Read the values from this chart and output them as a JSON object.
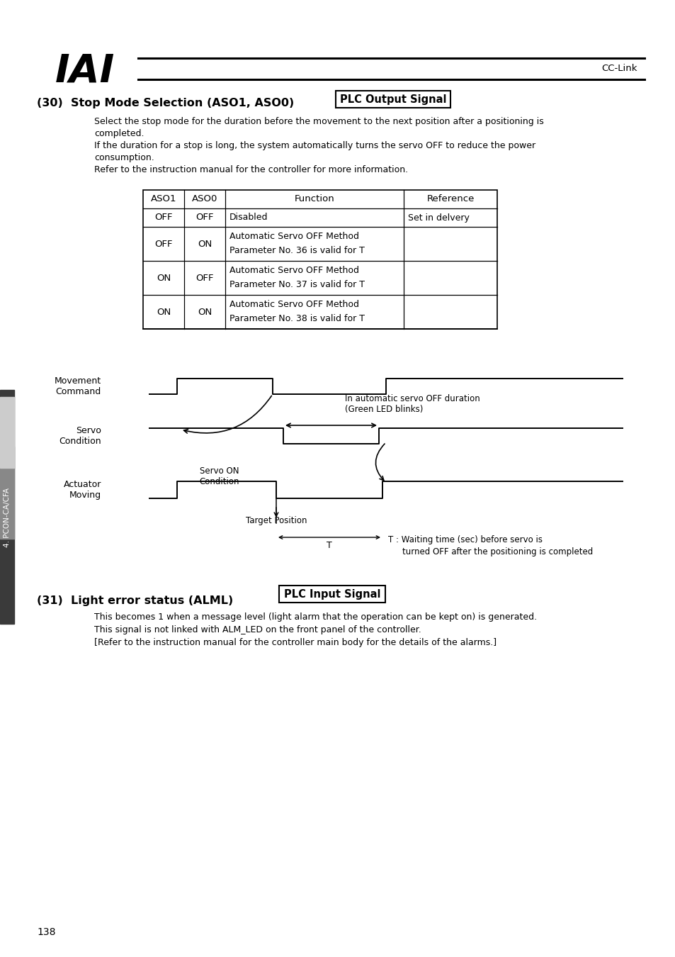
{
  "bg_color": "#ffffff",
  "text_color": "#000000",
  "header_text": "CC-Link",
  "sidebar_text": "4. PCON-CA/CFA",
  "page_number": "138",
  "section30_title": "(30)  Stop Mode Selection (ASO1, ASO0)",
  "section30_badge": "PLC Output Signal",
  "section30_desc_line1": "Select the stop mode for the duration before the movement to the next position after a positioning is",
  "section30_desc_line2": "completed.",
  "section30_desc_line3": "If the duration for a stop is long, the system automatically turns the servo OFF to reduce the power",
  "section30_desc_line4": "consumption.",
  "section30_desc_line5": "Refer to the instruction manual for the controller for more information.",
  "table_headers": [
    "ASO1",
    "ASO0",
    "Function",
    "Reference"
  ],
  "table_rows": [
    [
      "OFF",
      "OFF",
      "Disabled",
      "Set in delvery"
    ],
    [
      "OFF",
      "ON",
      "Automatic Servo OFF Method\nParameter No. 36 is valid for T",
      ""
    ],
    [
      "ON",
      "OFF",
      "Automatic Servo OFF Method\nParameter No. 37 is valid for T",
      ""
    ],
    [
      "ON",
      "ON",
      "Automatic Servo OFF Method\nParameter No. 38 is valid for T",
      ""
    ]
  ],
  "diag_label_mc": "Movement\nCommand",
  "diag_label_sc": "Servo\nCondition",
  "diag_label_am": "Actuator\nMoving",
  "diag_label_servo_on": "Servo ON\nCondition",
  "diag_label_target": "Target Position",
  "diag_label_auto_off": "In automatic servo OFF duration\n(Green LED blinks)",
  "diag_label_T": "T",
  "diag_label_T_desc1": "T : Waiting time (sec) before servo is",
  "diag_label_T_desc2": "turned OFF after the positioning is completed",
  "section31_title": "(31)  Light error status (ALML)",
  "section31_badge": "PLC Input Signal",
  "section31_desc1": "This becomes 1 when a message level (light alarm that the operation can be kept on) is generated.",
  "section31_desc2": "This signal is not linked with ALM_LED on the front panel of the controller.",
  "section31_desc3": "[Refer to the instruction manual for the controller main body for the details of the alarms.]"
}
